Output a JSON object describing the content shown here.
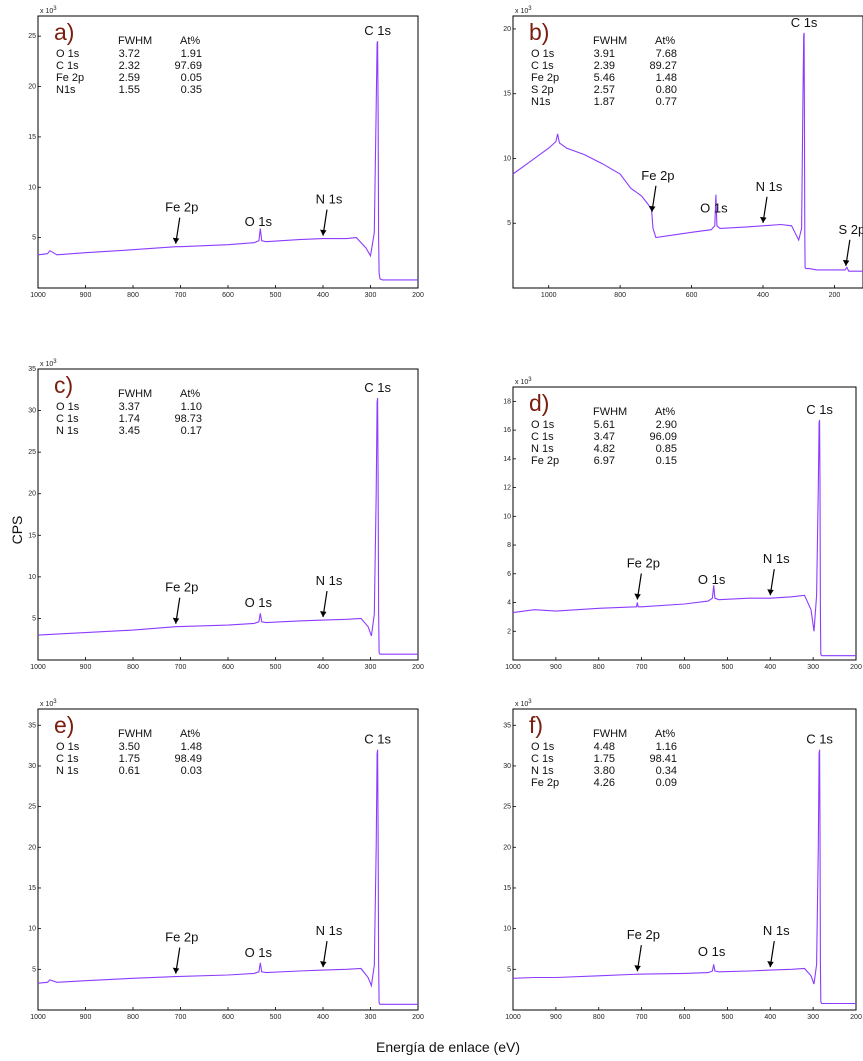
{
  "figure": {
    "ylabel": "CPS",
    "xlabel": "Energía de enlace (eV)"
  },
  "colors": {
    "spectrum": "#8c3cff",
    "frame": "#000000",
    "letter": "#7a1e0f"
  },
  "chart_data": [
    {
      "type": "line",
      "panel": "a)",
      "exp_label": "x 10",
      "exp_power": "3",
      "xlim": [
        1000,
        200
      ],
      "ylim": [
        0,
        27
      ],
      "xticks": [
        "1000",
        "900",
        "800",
        "700",
        "600",
        "500",
        "400",
        "300",
        "200"
      ],
      "yticks": [
        "5",
        "10",
        "15",
        "20",
        "25"
      ],
      "table": {
        "headers": [
          "",
          "FWHM",
          "At%"
        ],
        "rows": [
          [
            "O 1s",
            "3.72",
            "1.91"
          ],
          [
            "C 1s",
            "2.32",
            "97.69"
          ],
          [
            "Fe 2p",
            "2.59",
            "0.05"
          ],
          [
            "N1s",
            "1.55",
            "0.35"
          ]
        ]
      },
      "peaks": [
        {
          "label": "C 1s",
          "x": 285
        },
        {
          "label": "O 1s",
          "x": 532
        },
        {
          "label": "Fe 2p",
          "x": 710,
          "arrow": true
        },
        {
          "label": "N 1s",
          "x": 400,
          "arrow": true
        }
      ],
      "series": [
        {
          "x": [
            1000,
            980,
            975,
            960,
            900,
            800,
            710,
            700,
            600,
            545,
            535,
            532,
            529,
            520,
            450,
            400,
            350,
            330,
            310,
            300,
            292,
            288,
            286,
            285,
            284,
            283,
            282,
            280,
            275,
            270,
            260,
            240,
            220,
            200
          ],
          "y": [
            3.3,
            3.4,
            3.7,
            3.3,
            3.5,
            3.8,
            4.1,
            4.1,
            4.3,
            4.5,
            4.7,
            5.9,
            4.7,
            4.6,
            4.8,
            4.9,
            4.9,
            5.0,
            4.0,
            3.2,
            5.5,
            18,
            24.3,
            24.5,
            18,
            5,
            1.5,
            0.9,
            0.8,
            0.8,
            0.8,
            0.8,
            0.8,
            0.8
          ]
        }
      ]
    },
    {
      "type": "line",
      "panel": "b)",
      "exp_label": "x 10",
      "exp_power": "3",
      "xlim": [
        1100,
        120
      ],
      "ylim": [
        0,
        21
      ],
      "xticks": [
        "1000",
        "800",
        "600",
        "400",
        "200"
      ],
      "yticks": [
        "5",
        "10",
        "15",
        "20"
      ],
      "table": {
        "headers": [
          "",
          "FWHM",
          "At%"
        ],
        "rows": [
          [
            "O 1s",
            "3.91",
            "7.68"
          ],
          [
            "C 1s",
            "2.39",
            "89.27"
          ],
          [
            "Fe 2p",
            "5.46",
            "1.48"
          ],
          [
            "S 2p",
            "2.57",
            "0.80"
          ],
          [
            "N1s",
            "1.87",
            "0.77"
          ]
        ]
      },
      "peaks": [
        {
          "label": "C 1s",
          "x": 285
        },
        {
          "label": "Fe 2p",
          "x": 711,
          "arrow": true
        },
        {
          "label": "O 1s",
          "x": 532
        },
        {
          "label": "N 1s",
          "x": 400,
          "arrow": true
        },
        {
          "label": "S 2p",
          "x": 168,
          "arrow": true
        }
      ],
      "series": [
        {
          "x": [
            1100,
            1050,
            1000,
            980,
            975,
            970,
            950,
            900,
            850,
            800,
            770,
            740,
            720,
            712,
            708,
            700,
            650,
            600,
            545,
            535,
            532,
            529,
            520,
            450,
            400,
            350,
            320,
            300,
            292,
            288,
            286,
            285,
            284,
            283,
            282,
            280,
            270,
            250,
            200,
            170,
            165,
            160,
            140,
            120
          ],
          "y": [
            8.8,
            9.8,
            10.8,
            11.3,
            11.9,
            11.2,
            10.8,
            10.3,
            9.6,
            8.8,
            7.7,
            7.1,
            6.4,
            6.0,
            4.6,
            3.9,
            4.1,
            4.3,
            4.5,
            4.8,
            7.2,
            4.8,
            4.6,
            4.7,
            4.8,
            4.9,
            4.8,
            3.7,
            4.6,
            15,
            19.5,
            19.7,
            14,
            4,
            1.6,
            1.5,
            1.5,
            1.4,
            1.4,
            1.4,
            1.6,
            1.3,
            1.3,
            1.3
          ]
        }
      ]
    },
    {
      "type": "line",
      "panel": "c)",
      "exp_label": "x 10",
      "exp_power": "3",
      "xlim": [
        1000,
        200
      ],
      "ylim": [
        0,
        35
      ],
      "xticks": [
        "1000",
        "900",
        "800",
        "700",
        "600",
        "500",
        "400",
        "300",
        "200"
      ],
      "yticks": [
        "5",
        "10",
        "15",
        "20",
        "25",
        "30",
        "35"
      ],
      "table": {
        "headers": [
          "",
          "FWHM",
          "At%"
        ],
        "rows": [
          [
            "O 1s",
            "3.37",
            "1.10"
          ],
          [
            "C 1s",
            "1.74",
            "98.73"
          ],
          [
            "N 1s",
            "3.45",
            "0.17"
          ]
        ]
      },
      "peaks": [
        {
          "label": "C 1s",
          "x": 285
        },
        {
          "label": "Fe 2p",
          "x": 710,
          "arrow": true
        },
        {
          "label": "O 1s",
          "x": 532
        },
        {
          "label": "N 1s",
          "x": 400,
          "arrow": true
        }
      ],
      "series": [
        {
          "x": [
            1000,
            900,
            800,
            710,
            600,
            545,
            535,
            532,
            529,
            520,
            450,
            400,
            350,
            320,
            305,
            298,
            292,
            288,
            286,
            285,
            284,
            283,
            282,
            280,
            270,
            250,
            220,
            200
          ],
          "y": [
            3.0,
            3.3,
            3.6,
            4.0,
            4.2,
            4.4,
            4.6,
            5.6,
            4.6,
            4.5,
            4.7,
            4.8,
            4.9,
            5.0,
            4.0,
            2.9,
            5.5,
            20,
            31,
            31.5,
            22,
            6,
            0.9,
            0.7,
            0.7,
            0.7,
            0.7,
            0.7
          ]
        }
      ]
    },
    {
      "type": "line",
      "panel": "d)",
      "exp_label": "x 10",
      "exp_power": "3",
      "xlim": [
        1000,
        200
      ],
      "ylim": [
        0,
        19
      ],
      "xticks": [
        "1000",
        "900",
        "800",
        "700",
        "600",
        "500",
        "400",
        "300",
        "200"
      ],
      "yticks": [
        "2",
        "4",
        "6",
        "8",
        "10",
        "12",
        "14",
        "16",
        "18"
      ],
      "table": {
        "headers": [
          "",
          "FWHM",
          "At%"
        ],
        "rows": [
          [
            "O 1s",
            "5.61",
            "2.90"
          ],
          [
            "C 1s",
            "3.47",
            "96.09"
          ],
          [
            "N 1s",
            "4.82",
            "0.85"
          ],
          [
            "Fe 2p",
            "6.97",
            "0.15"
          ]
        ]
      },
      "peaks": [
        {
          "label": "C 1s",
          "x": 285
        },
        {
          "label": "Fe 2p",
          "x": 710,
          "arrow": true
        },
        {
          "label": "O 1s",
          "x": 532
        },
        {
          "label": "N 1s",
          "x": 400,
          "arrow": true
        }
      ],
      "series": [
        {
          "x": [
            1000,
            950,
            900,
            800,
            712,
            710,
            708,
            700,
            600,
            545,
            535,
            532,
            529,
            520,
            450,
            400,
            350,
            320,
            305,
            298,
            292,
            288,
            286,
            285,
            284,
            283,
            282,
            280,
            270,
            250,
            220,
            200
          ],
          "y": [
            3.3,
            3.5,
            3.4,
            3.6,
            3.7,
            4.0,
            3.7,
            3.7,
            3.9,
            4.1,
            4.3,
            5.2,
            4.3,
            4.2,
            4.3,
            4.3,
            4.4,
            4.5,
            3.5,
            2.0,
            4.5,
            12,
            16.5,
            16.7,
            12,
            3.5,
            0.4,
            0.3,
            0.3,
            0.3,
            0.3,
            0.3
          ]
        }
      ]
    },
    {
      "type": "line",
      "panel": "e)",
      "exp_label": "x 10",
      "exp_power": "3",
      "xlim": [
        1000,
        200
      ],
      "ylim": [
        0,
        37
      ],
      "xticks": [
        "1000",
        "900",
        "800",
        "700",
        "600",
        "500",
        "400",
        "300",
        "200"
      ],
      "yticks": [
        "5",
        "10",
        "15",
        "20",
        "25",
        "30",
        "35"
      ],
      "table": {
        "headers": [
          "",
          "FWHM",
          "At%"
        ],
        "rows": [
          [
            "O 1s",
            "3.50",
            "1.48"
          ],
          [
            "C 1s",
            "1.75",
            "98.49"
          ],
          [
            "N 1s",
            "0.61",
            "0.03"
          ]
        ]
      },
      "peaks": [
        {
          "label": "C 1s",
          "x": 285
        },
        {
          "label": "Fe 2p",
          "x": 710,
          "arrow": true
        },
        {
          "label": "O 1s",
          "x": 532
        },
        {
          "label": "N 1s",
          "x": 400,
          "arrow": true
        }
      ],
      "series": [
        {
          "x": [
            1000,
            980,
            975,
            960,
            900,
            800,
            710,
            600,
            545,
            535,
            532,
            529,
            520,
            450,
            400,
            350,
            320,
            305,
            298,
            292,
            288,
            286,
            285,
            284,
            283,
            282,
            280,
            270,
            250,
            220,
            200
          ],
          "y": [
            3.3,
            3.4,
            3.7,
            3.4,
            3.6,
            3.9,
            4.1,
            4.3,
            4.5,
            4.7,
            5.8,
            4.7,
            4.6,
            4.8,
            4.9,
            5.0,
            5.1,
            4.0,
            3.0,
            5.5,
            20,
            31.5,
            32,
            22,
            6,
            0.9,
            0.7,
            0.7,
            0.7,
            0.7,
            0.7
          ]
        }
      ]
    },
    {
      "type": "line",
      "panel": "f)",
      "exp_label": "x 10",
      "exp_power": "3",
      "xlim": [
        1000,
        200
      ],
      "ylim": [
        0,
        37
      ],
      "xticks": [
        "1000",
        "900",
        "800",
        "700",
        "600",
        "500",
        "400",
        "300",
        "200"
      ],
      "yticks": [
        "5",
        "10",
        "15",
        "20",
        "25",
        "30",
        "35"
      ],
      "table": {
        "headers": [
          "",
          "FWHM",
          "At%"
        ],
        "rows": [
          [
            "O 1s",
            "4.48",
            "1.16"
          ],
          [
            "C 1s",
            "1.75",
            "98.41"
          ],
          [
            "N 1s",
            "3.80",
            "0.34"
          ],
          [
            "Fe 2p",
            "4.26",
            "0.09"
          ]
        ]
      },
      "peaks": [
        {
          "label": "C 1s",
          "x": 285
        },
        {
          "label": "Fe 2p",
          "x": 710,
          "arrow": true
        },
        {
          "label": "O 1s",
          "x": 532
        },
        {
          "label": "N 1s",
          "x": 400,
          "arrow": true
        }
      ],
      "series": [
        {
          "x": [
            1000,
            950,
            900,
            800,
            710,
            600,
            545,
            535,
            532,
            529,
            520,
            450,
            400,
            350,
            320,
            305,
            298,
            292,
            288,
            286,
            285,
            284,
            283,
            282,
            280,
            270,
            250,
            220,
            200
          ],
          "y": [
            3.9,
            4.0,
            4.0,
            4.2,
            4.4,
            4.5,
            4.6,
            4.8,
            5.6,
            4.8,
            4.7,
            4.8,
            4.9,
            5.0,
            5.1,
            4.2,
            3.2,
            5.6,
            20,
            31.5,
            32,
            22,
            6,
            1.0,
            0.8,
            0.8,
            0.8,
            0.8,
            0.8
          ]
        }
      ]
    }
  ]
}
